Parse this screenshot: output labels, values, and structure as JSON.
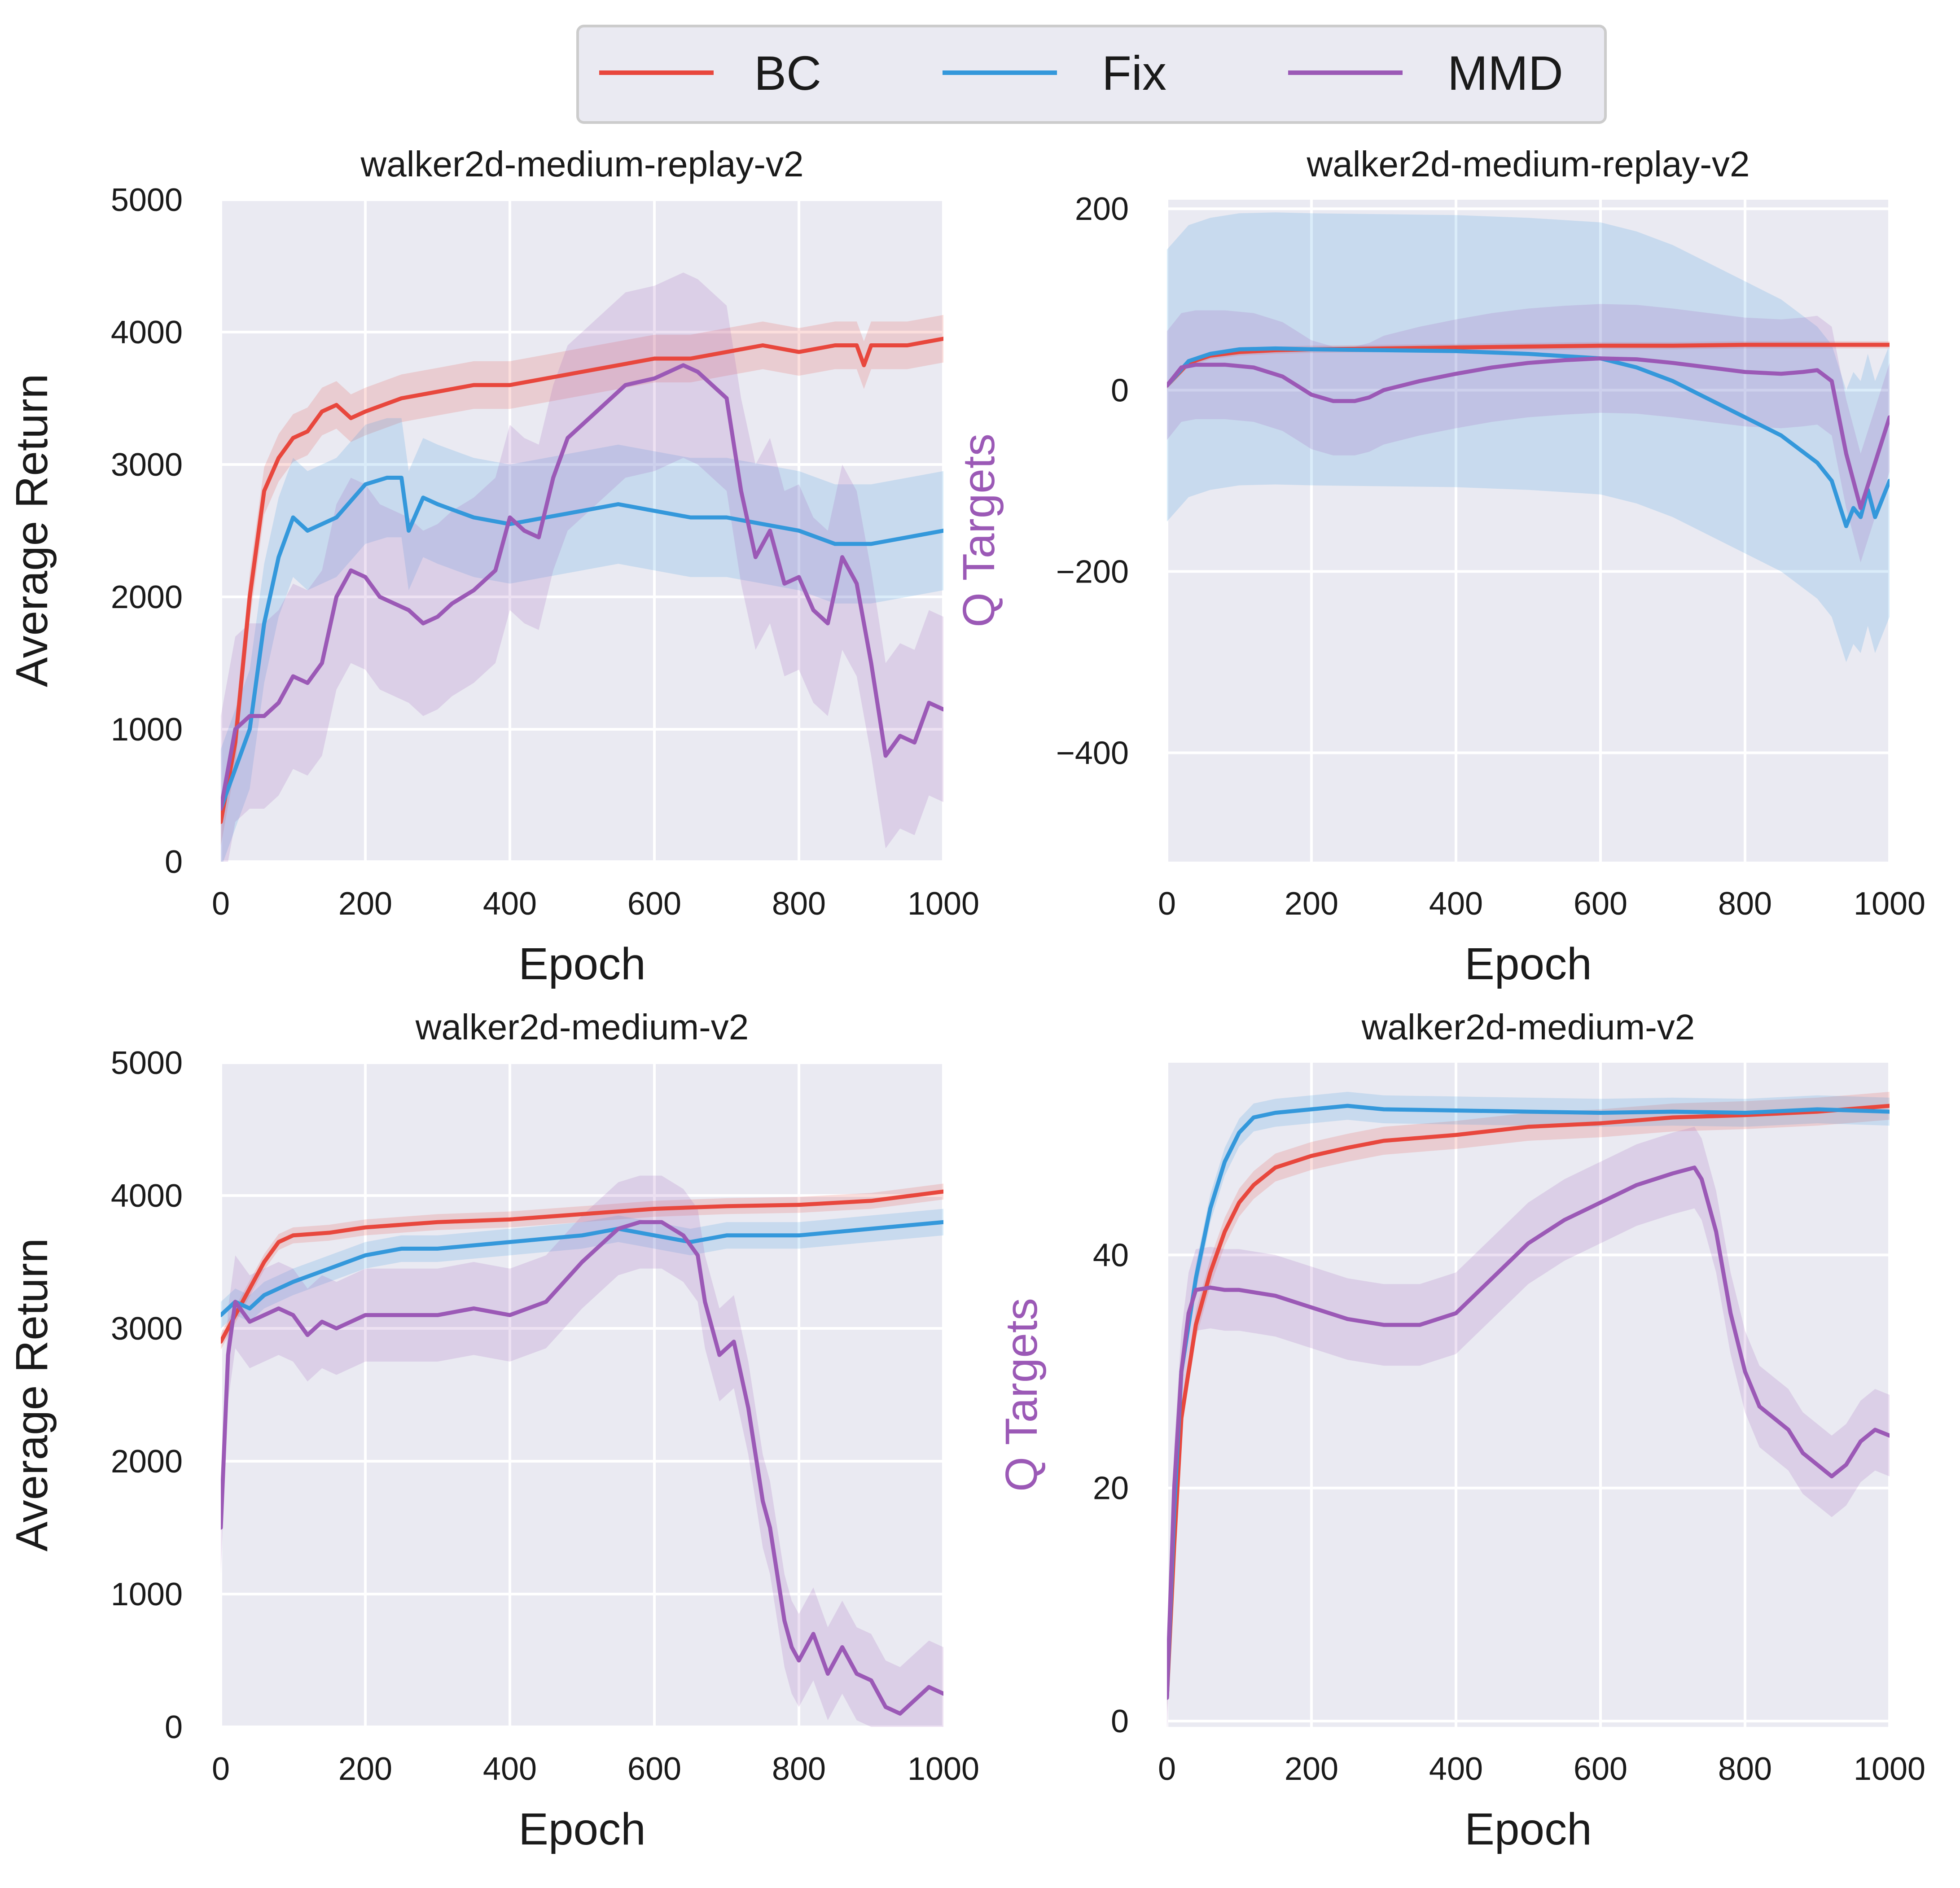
{
  "legend": {
    "entries": [
      {
        "label": "BC",
        "color": "#e8473d"
      },
      {
        "label": "Fix",
        "color": "#3498db"
      },
      {
        "label": "MMD",
        "color": "#9b59b6"
      }
    ]
  },
  "chart_data": [
    {
      "type": "line",
      "title": "walker2d-medium-replay-v2",
      "xlabel": "Epoch",
      "ylabel": "Average Return",
      "ylabel_color": "#1a1a1a",
      "xlim": [
        0,
        1000
      ],
      "ylim": [
        0,
        5000
      ],
      "xticks": [
        0,
        200,
        400,
        600,
        800,
        1000
      ],
      "yticks": [
        0,
        1000,
        2000,
        3000,
        4000,
        5000
      ],
      "ytick_labels": [
        "0",
        "1000",
        "2000",
        "3000",
        "4000",
        "5000"
      ],
      "grid": true,
      "series": [
        {
          "name": "BC",
          "color": "#e8473d",
          "band": 180,
          "x": [
            0,
            20,
            40,
            60,
            80,
            100,
            120,
            140,
            160,
            180,
            200,
            250,
            300,
            350,
            400,
            450,
            500,
            550,
            600,
            650,
            700,
            750,
            800,
            850,
            880,
            890,
            900,
            950,
            1000
          ],
          "y": [
            300,
            900,
            2000,
            2800,
            3050,
            3200,
            3250,
            3400,
            3450,
            3350,
            3400,
            3500,
            3550,
            3600,
            3600,
            3650,
            3700,
            3750,
            3800,
            3800,
            3850,
            3900,
            3850,
            3900,
            3900,
            3750,
            3900,
            3900,
            3950
          ]
        },
        {
          "name": "Fix",
          "color": "#3498db",
          "band": 450,
          "x": [
            0,
            20,
            40,
            60,
            80,
            100,
            120,
            160,
            200,
            230,
            250,
            260,
            280,
            300,
            350,
            400,
            450,
            500,
            550,
            600,
            650,
            700,
            750,
            800,
            850,
            900,
            950,
            1000
          ],
          "y": [
            400,
            700,
            1000,
            1800,
            2300,
            2600,
            2500,
            2600,
            2850,
            2900,
            2900,
            2500,
            2750,
            2700,
            2600,
            2550,
            2600,
            2650,
            2700,
            2650,
            2600,
            2600,
            2550,
            2500,
            2400,
            2400,
            2450,
            2500
          ]
        },
        {
          "name": "MMD",
          "color": "#9b59b6",
          "band": 700,
          "x": [
            0,
            20,
            40,
            60,
            80,
            100,
            120,
            140,
            160,
            180,
            200,
            220,
            240,
            260,
            280,
            300,
            320,
            350,
            380,
            400,
            420,
            440,
            460,
            480,
            520,
            560,
            600,
            640,
            660,
            680,
            700,
            720,
            740,
            760,
            780,
            800,
            820,
            840,
            860,
            880,
            900,
            920,
            940,
            960,
            980,
            1000
          ],
          "y": [
            400,
            1000,
            1100,
            1100,
            1200,
            1400,
            1350,
            1500,
            2000,
            2200,
            2150,
            2000,
            1950,
            1900,
            1800,
            1850,
            1950,
            2050,
            2200,
            2600,
            2500,
            2450,
            2900,
            3200,
            3400,
            3600,
            3650,
            3750,
            3700,
            3600,
            3500,
            2800,
            2300,
            2500,
            2100,
            2150,
            1900,
            1800,
            2300,
            2100,
            1500,
            800,
            950,
            900,
            1200,
            1150
          ]
        }
      ]
    },
    {
      "type": "line",
      "title": "walker2d-medium-replay-v2",
      "xlabel": "Epoch",
      "ylabel": "Q Targets",
      "ylabel_color": "#9b59b6",
      "xlim": [
        0,
        1000
      ],
      "ylim": [
        -520,
        210
      ],
      "xticks": [
        0,
        200,
        400,
        600,
        800,
        1000
      ],
      "yticks": [
        -400,
        -200,
        0,
        200
      ],
      "ytick_labels": [
        "−400",
        "−200",
        "0",
        "200"
      ],
      "grid": true,
      "series": [
        {
          "name": "BC",
          "color": "#e8473d",
          "band": 4,
          "x": [
            0,
            30,
            60,
            100,
            150,
            200,
            300,
            400,
            500,
            600,
            700,
            800,
            900,
            1000
          ],
          "y": [
            5,
            30,
            38,
            42,
            44,
            45,
            46,
            47,
            48,
            49,
            49,
            50,
            50,
            50
          ]
        },
        {
          "name": "Fix",
          "color": "#3498db",
          "band": 150,
          "x": [
            0,
            30,
            60,
            100,
            150,
            200,
            300,
            400,
            500,
            600,
            650,
            700,
            750,
            800,
            850,
            900,
            920,
            940,
            950,
            960,
            970,
            980,
            1000
          ],
          "y": [
            5,
            32,
            40,
            45,
            46,
            45,
            44,
            43,
            40,
            35,
            25,
            10,
            -10,
            -30,
            -50,
            -80,
            -100,
            -150,
            -130,
            -140,
            -110,
            -140,
            -100
          ]
        },
        {
          "name": "MMD",
          "color": "#9b59b6",
          "band": 60,
          "x": [
            0,
            20,
            40,
            80,
            120,
            160,
            180,
            200,
            230,
            260,
            280,
            300,
            350,
            400,
            450,
            500,
            550,
            600,
            650,
            700,
            750,
            800,
            850,
            880,
            900,
            920,
            940,
            960,
            980,
            1000
          ],
          "y": [
            5,
            25,
            28,
            28,
            25,
            15,
            5,
            -5,
            -12,
            -12,
            -8,
            0,
            10,
            18,
            25,
            30,
            33,
            35,
            34,
            30,
            25,
            20,
            18,
            20,
            22,
            10,
            -70,
            -130,
            -80,
            -30
          ]
        }
      ]
    },
    {
      "type": "line",
      "title": "walker2d-medium-v2",
      "xlabel": "Epoch",
      "ylabel": "Average Return",
      "ylabel_color": "#1a1a1a",
      "xlim": [
        0,
        1000
      ],
      "ylim": [
        0,
        5000
      ],
      "xticks": [
        0,
        200,
        400,
        600,
        800,
        1000
      ],
      "yticks": [
        0,
        1000,
        2000,
        3000,
        4000,
        5000
      ],
      "ytick_labels": [
        "0",
        "1000",
        "2000",
        "3000",
        "4000",
        "5000"
      ],
      "grid": true,
      "series": [
        {
          "name": "BC",
          "color": "#e8473d",
          "band": 60,
          "x": [
            0,
            20,
            40,
            60,
            80,
            100,
            150,
            200,
            300,
            400,
            500,
            600,
            700,
            800,
            900,
            1000
          ],
          "y": [
            2900,
            3100,
            3300,
            3500,
            3650,
            3700,
            3720,
            3760,
            3800,
            3820,
            3860,
            3900,
            3920,
            3930,
            3960,
            4030
          ]
        },
        {
          "name": "Fix",
          "color": "#3498db",
          "band": 100,
          "x": [
            0,
            20,
            40,
            60,
            80,
            100,
            150,
            200,
            250,
            300,
            400,
            500,
            550,
            600,
            650,
            700,
            800,
            900,
            1000
          ],
          "y": [
            3100,
            3200,
            3150,
            3250,
            3300,
            3350,
            3450,
            3550,
            3600,
            3600,
            3650,
            3700,
            3750,
            3700,
            3650,
            3700,
            3700,
            3750,
            3800
          ]
        },
        {
          "name": "MMD",
          "color": "#9b59b6",
          "band": 350,
          "x": [
            0,
            10,
            20,
            40,
            60,
            80,
            100,
            120,
            140,
            160,
            200,
            250,
            300,
            350,
            400,
            450,
            500,
            550,
            580,
            610,
            640,
            660,
            670,
            690,
            710,
            730,
            750,
            760,
            780,
            790,
            800,
            820,
            840,
            860,
            880,
            900,
            920,
            940,
            960,
            980,
            1000
          ],
          "y": [
            1500,
            2800,
            3200,
            3050,
            3100,
            3150,
            3100,
            2950,
            3050,
            3000,
            3100,
            3100,
            3100,
            3150,
            3100,
            3200,
            3500,
            3750,
            3800,
            3800,
            3700,
            3550,
            3200,
            2800,
            2900,
            2400,
            1700,
            1500,
            800,
            600,
            500,
            700,
            400,
            600,
            400,
            350,
            150,
            100,
            200,
            300,
            250
          ]
        }
      ]
    },
    {
      "type": "line",
      "title": "walker2d-medium-v2",
      "xlabel": "Epoch",
      "ylabel": "Q Targets",
      "ylabel_color": "#9b59b6",
      "xlim": [
        0,
        1000
      ],
      "ylim": [
        -0.5,
        56.5
      ],
      "xticks": [
        0,
        200,
        400,
        600,
        800,
        1000
      ],
      "yticks": [
        0,
        20,
        40
      ],
      "ytick_labels": [
        "0",
        "20",
        "40"
      ],
      "grid": true,
      "series": [
        {
          "name": "BC",
          "color": "#e8473d",
          "band": 1.2,
          "x": [
            0,
            10,
            20,
            40,
            60,
            80,
            100,
            120,
            150,
            200,
            250,
            300,
            400,
            500,
            600,
            700,
            800,
            900,
            1000
          ],
          "y": [
            2,
            15,
            26,
            34,
            38.5,
            42,
            44.5,
            46,
            47.5,
            48.5,
            49.2,
            49.8,
            50.3,
            51,
            51.3,
            51.8,
            52,
            52.3,
            52.8
          ]
        },
        {
          "name": "Fix",
          "color": "#3498db",
          "band": 1.2,
          "x": [
            0,
            10,
            20,
            40,
            60,
            80,
            100,
            120,
            150,
            200,
            250,
            300,
            400,
            500,
            600,
            700,
            800,
            900,
            1000
          ],
          "y": [
            2,
            18,
            30,
            38,
            44,
            48,
            50.5,
            51.8,
            52.2,
            52.5,
            52.8,
            52.5,
            52.4,
            52.3,
            52.2,
            52.3,
            52.2,
            52.5,
            52.3
          ]
        },
        {
          "name": "MMD",
          "color": "#9b59b6",
          "band": 3.5,
          "x": [
            0,
            10,
            20,
            30,
            40,
            60,
            80,
            100,
            150,
            200,
            250,
            300,
            350,
            400,
            450,
            500,
            550,
            600,
            650,
            700,
            730,
            740,
            760,
            780,
            800,
            820,
            840,
            860,
            880,
            900,
            920,
            940,
            960,
            980,
            1000
          ],
          "y": [
            2,
            20,
            30,
            35,
            37,
            37.2,
            37,
            37,
            36.5,
            35.5,
            34.5,
            34,
            34,
            35,
            38,
            41,
            43,
            44.5,
            46,
            47,
            47.5,
            46.5,
            42,
            35,
            30,
            27,
            26,
            25,
            23,
            22,
            21,
            22,
            24,
            25,
            24.5
          ]
        }
      ]
    }
  ]
}
